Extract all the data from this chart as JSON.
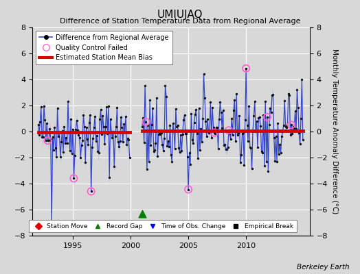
{
  "title": "UMIUJAQ",
  "subtitle": "Difference of Station Temperature Data from Regional Average",
  "ylabel_right": "Monthly Temperature Anomaly Difference (°C)",
  "credit": "Berkeley Earth",
  "xlim": [
    1991.5,
    2015.5
  ],
  "ylim": [
    -8,
    8
  ],
  "yticks": [
    -8,
    -6,
    -4,
    -2,
    0,
    2,
    4,
    6,
    8
  ],
  "xticks": [
    1995,
    2000,
    2005,
    2010
  ],
  "background_color": "#d8d8d8",
  "plot_bg_color": "#d8d8d8",
  "line_color": "#3344cc",
  "shade_color": "#aabbee",
  "bias_color": "#dd0000",
  "qc_color": "#ff66cc",
  "marker_color": "#111111",
  "grid_color": "#ffffff",
  "bias_y1": -0.05,
  "bias_y2": 0.05,
  "seg1_start": 1992.0,
  "seg1_end": 1999.917,
  "seg2_start": 2001.0,
  "seg2_end": 2014.917,
  "record_gap_x": 2001.0,
  "record_gap_y": -6.3
}
